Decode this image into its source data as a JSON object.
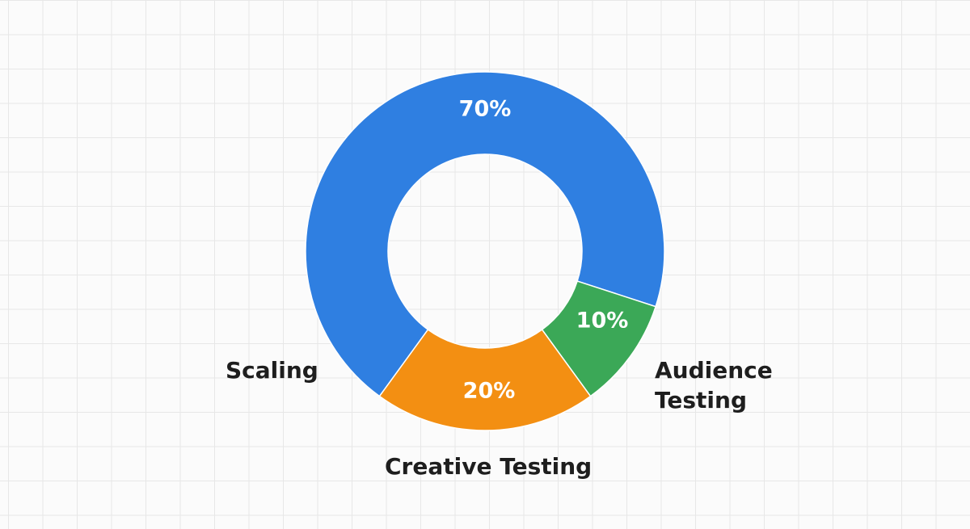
{
  "chart_data": {
    "type": "pie",
    "donut": true,
    "categories": [
      "Scaling",
      "Audience Testing",
      "Creative Testing"
    ],
    "values": [
      70,
      10,
      20
    ],
    "value_labels": [
      "70%",
      "10%",
      "20%"
    ],
    "colors": [
      "#2f7fe1",
      "#3ba857",
      "#f38f12"
    ]
  }
}
